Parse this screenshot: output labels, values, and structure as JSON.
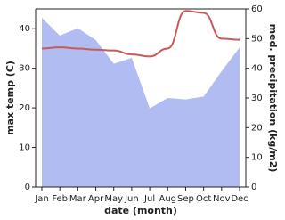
{
  "chart_data": {
    "type": "line",
    "x_label": "date (month)",
    "y_label": "max temp (C)",
    "y2_label": "med. precipitation (kg/m2)",
    "categories": [
      "Jan",
      "Feb",
      "Mar",
      "Apr",
      "May",
      "Jun",
      "Jul",
      "Aug",
      "Sep",
      "Oct",
      "Nov",
      "Dec"
    ],
    "series": [
      {
        "name": "max temp",
        "color": "#c85a5a",
        "values": [
          35,
          35.3,
          35,
          34.7,
          34.5,
          33.5,
          33,
          35,
          44.5,
          44,
          37.5,
          37.2
        ]
      },
      {
        "name": "med. precipitation",
        "color": "#b0bcf2",
        "axis": "y2",
        "values": [
          57,
          51,
          53.5,
          49.5,
          41.5,
          43.5,
          26.5,
          30,
          29.5,
          30.5,
          39,
          47
        ]
      }
    ],
    "ylim": [
      0,
      45
    ],
    "yticks": [
      0,
      10,
      20,
      30,
      40
    ],
    "y2lim": [
      0,
      60
    ],
    "y2ticks": [
      0,
      10,
      20,
      30,
      40,
      50,
      60
    ]
  }
}
